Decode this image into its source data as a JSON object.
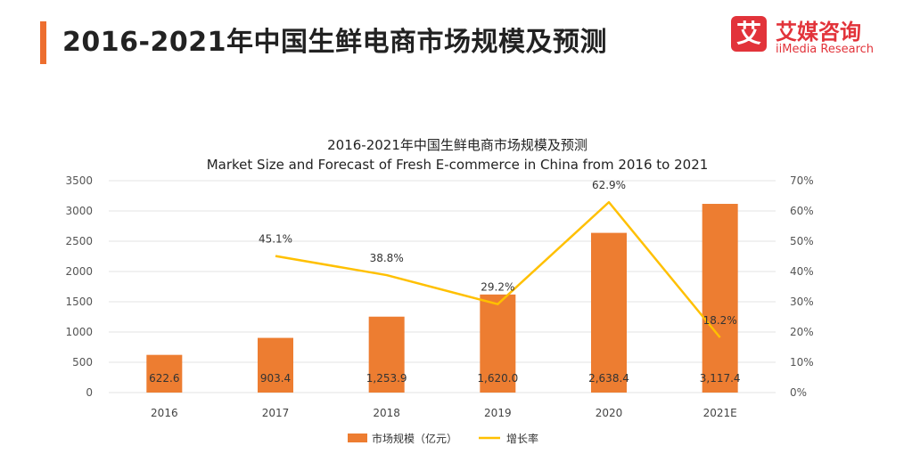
{
  "header": {
    "title": "2016-2021年中国生鲜电商市场规模及预测",
    "logo_cn": "艾媒咨询",
    "logo_en": "iiMedia Research",
    "logo_mark": "艾"
  },
  "colors": {
    "accent": "#ed6e2f",
    "bar": "#ed7d31",
    "line": "#ffc000",
    "brand": "#e2333a"
  },
  "chart_data": {
    "type": "bar",
    "title": "2016-2021年中国生鲜电商市场规模及预测",
    "subtitle": "Market Size and Forecast of Fresh E-commerce in China from 2016 to 2021",
    "categories": [
      "2016",
      "2017",
      "2018",
      "2019",
      "2020",
      "2021E"
    ],
    "series": [
      {
        "name": "市场规模（亿元）",
        "type": "bar",
        "axis": "left",
        "values": [
          622.6,
          903.4,
          1253.9,
          1620.0,
          2638.4,
          3117.4
        ],
        "labels": [
          "622.6",
          "903.4",
          "1,253.9",
          "1,620.0",
          "2,638.4",
          "3,117.4"
        ]
      },
      {
        "name": "增长率",
        "type": "line",
        "axis": "right",
        "values": [
          null,
          45.1,
          38.8,
          29.2,
          62.9,
          18.2
        ],
        "labels": [
          "",
          "45.1%",
          "38.8%",
          "29.2%",
          "62.9%",
          "18.2%"
        ]
      }
    ],
    "y_left": {
      "ylim": [
        0,
        3500
      ],
      "ticks": [
        0,
        500,
        1000,
        1500,
        2000,
        2500,
        3000,
        3500
      ],
      "tick_labels": [
        "0",
        "500",
        "1000",
        "1500",
        "2000",
        "2500",
        "3000",
        "3500"
      ]
    },
    "y_right": {
      "ylim": [
        0,
        70
      ],
      "ticks": [
        0,
        10,
        20,
        30,
        40,
        50,
        60,
        70
      ],
      "tick_labels": [
        "0%",
        "10%",
        "20%",
        "30%",
        "40%",
        "50%",
        "60%",
        "70%"
      ]
    },
    "grid": true,
    "legend_position": "bottom-center"
  }
}
